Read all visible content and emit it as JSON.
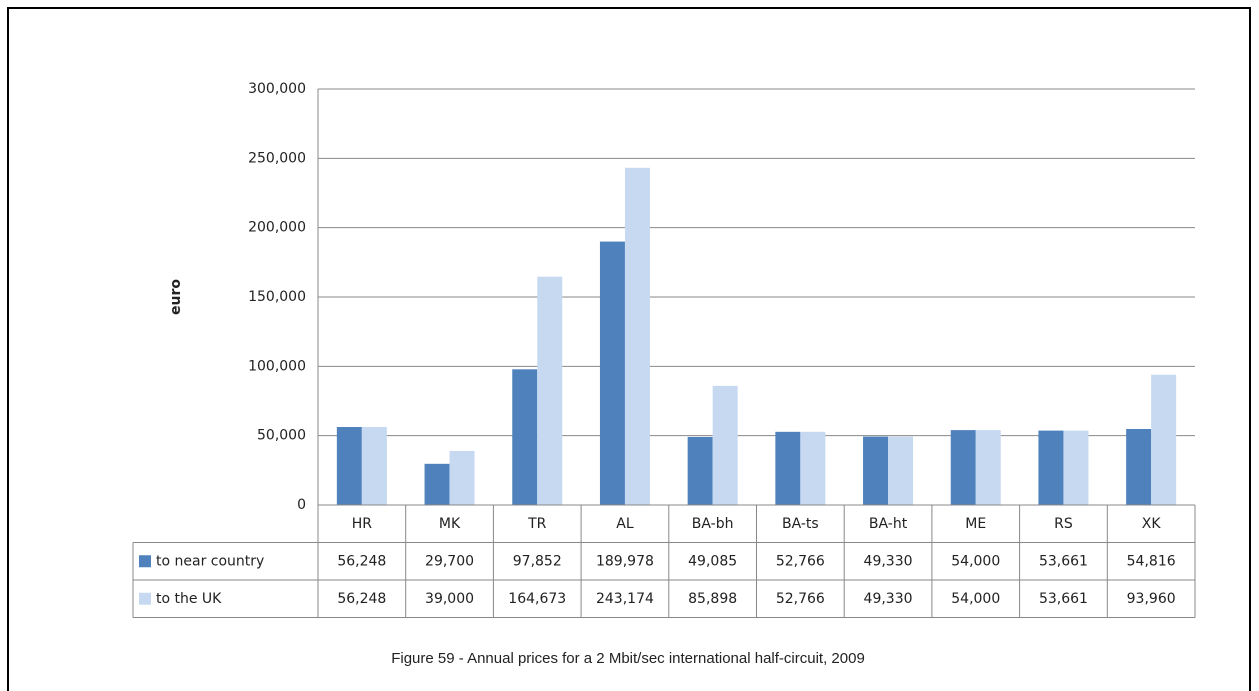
{
  "chart_data": {
    "type": "bar",
    "caption": "Figure 59 - Annual prices for a 2 Mbit/sec international half-circuit, 2009",
    "y_label": "euro",
    "categories": [
      "HR",
      "MK",
      "TR",
      "AL",
      "BA-bh",
      "BA-ts",
      "BA-ht",
      "ME",
      "RS",
      "XK"
    ],
    "series": [
      {
        "name": "to near country",
        "color": "#4f81bd",
        "values": [
          56248,
          29700,
          97852,
          189978,
          49085,
          52766,
          49330,
          54000,
          53661,
          54816
        ],
        "value_labels": [
          "56,248",
          "29,700",
          "97,852",
          "189,978",
          "49,085",
          "52,766",
          "49,330",
          "54,000",
          "53,661",
          "54,816"
        ]
      },
      {
        "name": "to the UK",
        "color": "#c6d9f1",
        "values": [
          56248,
          39000,
          164673,
          243174,
          85898,
          52766,
          49330,
          54000,
          53661,
          93960
        ],
        "value_labels": [
          "56,248",
          "39,000",
          "164,673",
          "243,174",
          "85,898",
          "52,766",
          "49,330",
          "54,000",
          "53,661",
          "93,960"
        ]
      }
    ],
    "ylim": [
      0,
      300000
    ],
    "yticks": [
      0,
      {
        "value": 50000,
        "label": "50,000"
      },
      {
        "value": 100000,
        "label": "100,000"
      },
      {
        "value": 150000,
        "label": "150,000"
      },
      {
        "value": 200000,
        "label": "200,000"
      },
      {
        "value": 250000,
        "label": "250,000"
      },
      {
        "value": 300000,
        "label": "300,000"
      }
    ],
    "grid": true
  }
}
